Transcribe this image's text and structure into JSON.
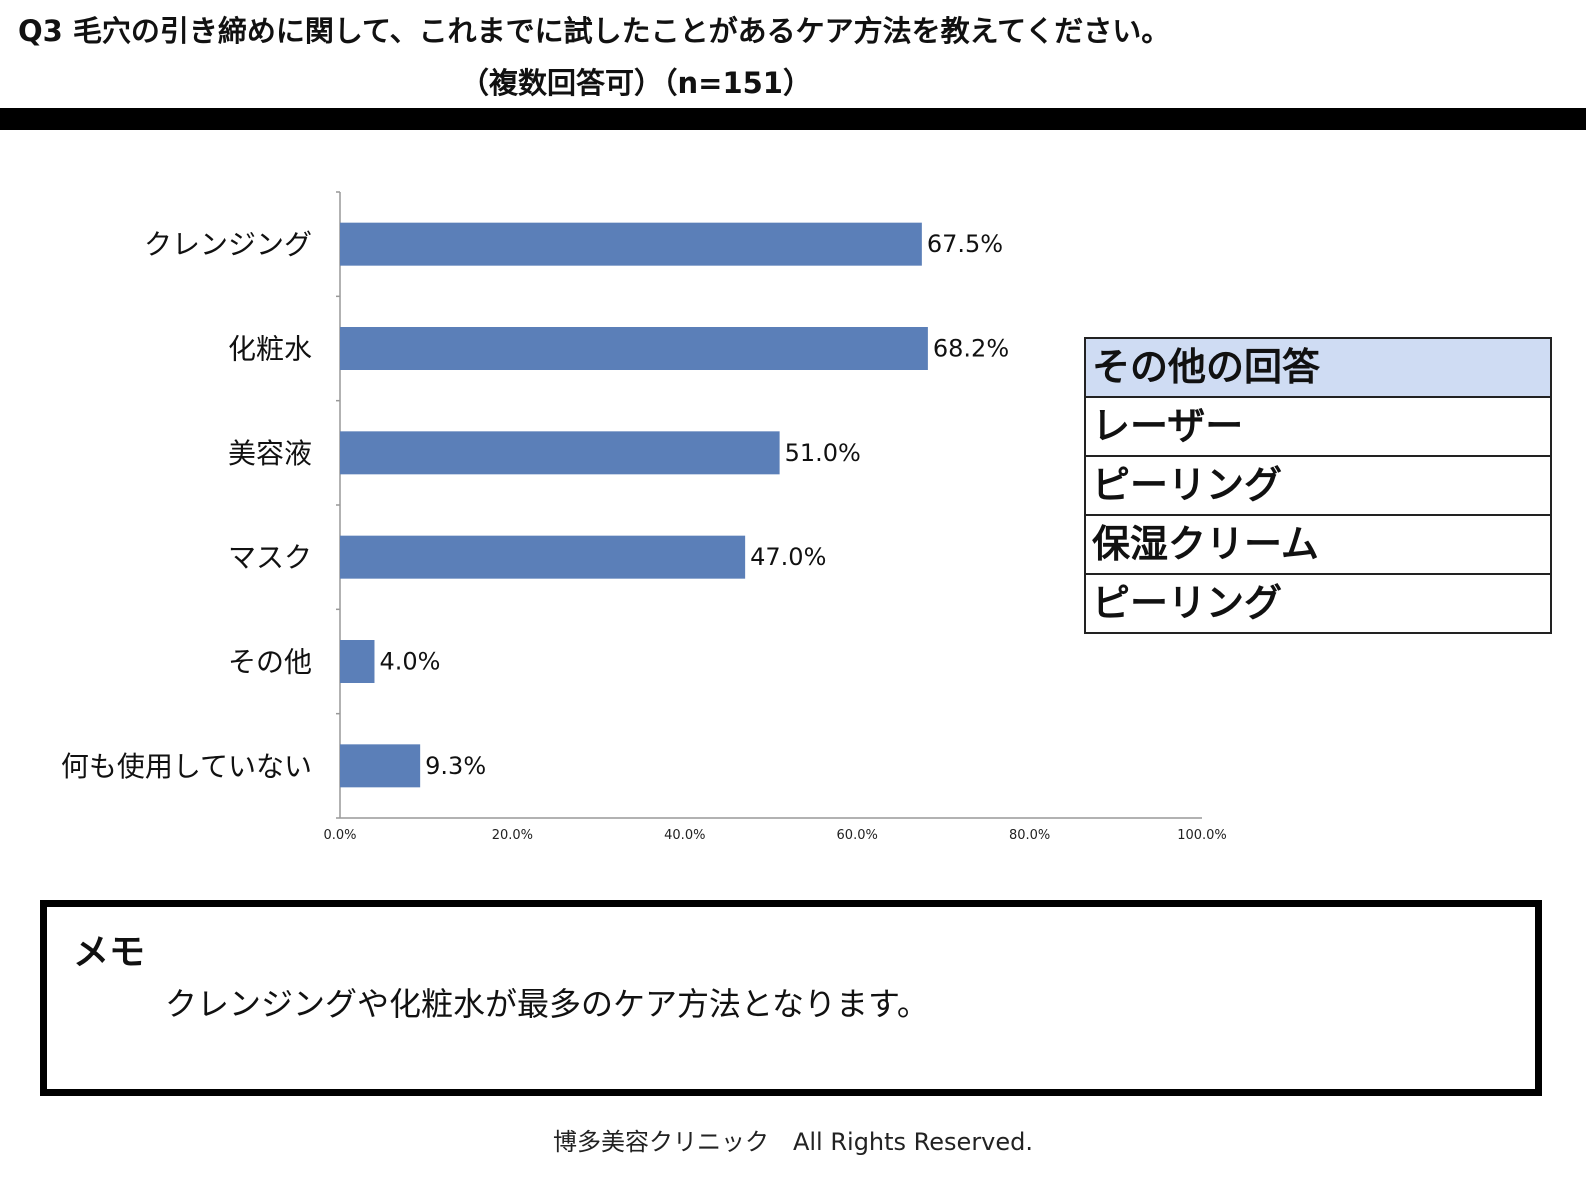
{
  "title": {
    "line1": "Q3 毛穴の引き締めに関して、これまでに試したことがあるケア方法を教えてください。",
    "line2": "（複数回答可）（n=151）"
  },
  "chart_data": {
    "type": "bar",
    "orientation": "horizontal",
    "categories": [
      "クレンジング",
      "化粧水",
      "美容液",
      "マスク",
      "その他",
      "何も使用していない"
    ],
    "values": [
      67.5,
      68.2,
      51.0,
      47.0,
      4.0,
      9.3
    ],
    "data_labels": [
      "67.5%",
      "68.2%",
      "51.0%",
      "47.0%",
      "4.0%",
      "9.3%"
    ],
    "x_ticks": [
      "0.0%",
      "20.0%",
      "40.0%",
      "60.0%",
      "80.0%",
      "100.0%"
    ],
    "xlim": [
      0,
      100
    ],
    "unit": "%",
    "grid": false,
    "bar_color": "#5b7fb8"
  },
  "other_answers": {
    "header": "その他の回答",
    "items": [
      "レーザー",
      "ピーリング",
      "保湿クリーム",
      "ピーリング"
    ],
    "header_color": "#cfdcf3"
  },
  "memo": {
    "title": "メモ",
    "text": "クレンジングや化粧水が最多のケア方法となります。"
  },
  "footer": "博多美容クリニック　All Rights Reserved."
}
